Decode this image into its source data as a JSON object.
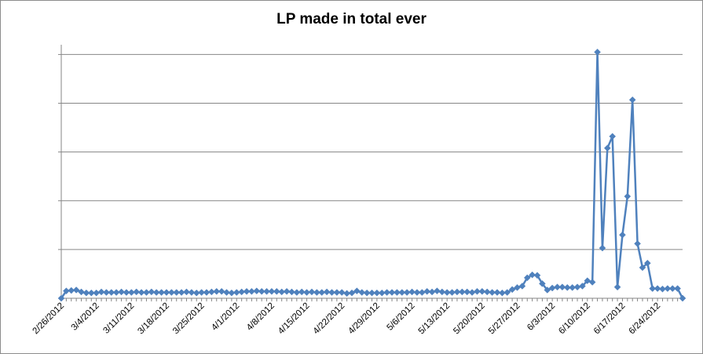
{
  "chart_data": {
    "type": "line",
    "title": "LP made in total ever",
    "xlabel": "",
    "ylabel": "",
    "x_start": "2/26/2012",
    "x_end": "6/29/2012",
    "x_tick_labels": [
      "2/26/2012",
      "3/4/2012",
      "3/11/2012",
      "3/18/2012",
      "3/25/2012",
      "4/1/2012",
      "4/8/2012",
      "4/15/2012",
      "4/22/2012",
      "4/29/2012",
      "5/6/2012",
      "5/13/2012",
      "5/20/2012",
      "5/27/2012",
      "6/3/2012",
      "6/10/2012",
      "6/17/2012",
      "6/24/2012"
    ],
    "y_tick_labels_visible": false,
    "ylim": [
      0,
      5.2
    ],
    "y_gridlines": [
      1,
      2,
      3,
      4,
      5
    ],
    "grid": true,
    "legend": "none",
    "series": [
      {
        "color": "#4f81bd",
        "marker": "diamond",
        "points": [
          [
            "2/26/2012",
            0.0
          ],
          [
            "2/27/2012",
            0.15
          ],
          [
            "2/28/2012",
            0.16
          ],
          [
            "2/29/2012",
            0.17
          ],
          [
            "3/1/2012",
            0.13
          ],
          [
            "3/2/2012",
            0.11
          ],
          [
            "3/3/2012",
            0.11
          ],
          [
            "3/4/2012",
            0.11
          ],
          [
            "3/5/2012",
            0.13
          ],
          [
            "3/6/2012",
            0.12
          ],
          [
            "3/7/2012",
            0.12
          ],
          [
            "3/8/2012",
            0.12
          ],
          [
            "3/9/2012",
            0.13
          ],
          [
            "3/10/2012",
            0.12
          ],
          [
            "3/11/2012",
            0.12
          ],
          [
            "3/12/2012",
            0.13
          ],
          [
            "3/13/2012",
            0.12
          ],
          [
            "3/14/2012",
            0.12
          ],
          [
            "3/15/2012",
            0.13
          ],
          [
            "3/16/2012",
            0.12
          ],
          [
            "3/17/2012",
            0.12
          ],
          [
            "3/18/2012",
            0.12
          ],
          [
            "3/19/2012",
            0.12
          ],
          [
            "3/20/2012",
            0.12
          ],
          [
            "3/21/2012",
            0.12
          ],
          [
            "3/22/2012",
            0.13
          ],
          [
            "3/23/2012",
            0.12
          ],
          [
            "3/24/2012",
            0.11
          ],
          [
            "3/25/2012",
            0.12
          ],
          [
            "3/26/2012",
            0.12
          ],
          [
            "3/27/2012",
            0.13
          ],
          [
            "3/28/2012",
            0.14
          ],
          [
            "3/29/2012",
            0.14
          ],
          [
            "3/30/2012",
            0.12
          ],
          [
            "3/31/2012",
            0.11
          ],
          [
            "4/1/2012",
            0.12
          ],
          [
            "4/2/2012",
            0.13
          ],
          [
            "4/3/2012",
            0.14
          ],
          [
            "4/4/2012",
            0.14
          ],
          [
            "4/5/2012",
            0.15
          ],
          [
            "4/6/2012",
            0.14
          ],
          [
            "4/7/2012",
            0.14
          ],
          [
            "4/8/2012",
            0.14
          ],
          [
            "4/9/2012",
            0.14
          ],
          [
            "4/10/2012",
            0.13
          ],
          [
            "4/11/2012",
            0.14
          ],
          [
            "4/12/2012",
            0.13
          ],
          [
            "4/13/2012",
            0.12
          ],
          [
            "4/14/2012",
            0.13
          ],
          [
            "4/15/2012",
            0.12
          ],
          [
            "4/16/2012",
            0.13
          ],
          [
            "4/17/2012",
            0.12
          ],
          [
            "4/18/2012",
            0.12
          ],
          [
            "4/19/2012",
            0.13
          ],
          [
            "4/20/2012",
            0.12
          ],
          [
            "4/21/2012",
            0.12
          ],
          [
            "4/22/2012",
            0.12
          ],
          [
            "4/23/2012",
            0.1
          ],
          [
            "4/24/2012",
            0.11
          ],
          [
            "4/25/2012",
            0.15
          ],
          [
            "4/26/2012",
            0.12
          ],
          [
            "4/27/2012",
            0.11
          ],
          [
            "4/28/2012",
            0.11
          ],
          [
            "4/29/2012",
            0.11
          ],
          [
            "4/30/2012",
            0.11
          ],
          [
            "5/1/2012",
            0.12
          ],
          [
            "5/2/2012",
            0.12
          ],
          [
            "5/3/2012",
            0.12
          ],
          [
            "5/4/2012",
            0.12
          ],
          [
            "5/5/2012",
            0.12
          ],
          [
            "5/6/2012",
            0.13
          ],
          [
            "5/7/2012",
            0.12
          ],
          [
            "5/8/2012",
            0.12
          ],
          [
            "5/9/2012",
            0.14
          ],
          [
            "5/10/2012",
            0.13
          ],
          [
            "5/11/2012",
            0.15
          ],
          [
            "5/12/2012",
            0.13
          ],
          [
            "5/13/2012",
            0.12
          ],
          [
            "5/14/2012",
            0.12
          ],
          [
            "5/15/2012",
            0.13
          ],
          [
            "5/16/2012",
            0.13
          ],
          [
            "5/17/2012",
            0.13
          ],
          [
            "5/18/2012",
            0.12
          ],
          [
            "5/19/2012",
            0.14
          ],
          [
            "5/20/2012",
            0.14
          ],
          [
            "5/21/2012",
            0.13
          ],
          [
            "5/22/2012",
            0.12
          ],
          [
            "5/23/2012",
            0.12
          ],
          [
            "5/24/2012",
            0.11
          ],
          [
            "5/25/2012",
            0.12
          ],
          [
            "5/26/2012",
            0.18
          ],
          [
            "5/27/2012",
            0.22
          ],
          [
            "5/28/2012",
            0.25
          ],
          [
            "5/29/2012",
            0.42
          ],
          [
            "5/30/2012",
            0.48
          ],
          [
            "5/31/2012",
            0.47
          ],
          [
            "6/1/2012",
            0.3
          ],
          [
            "6/2/2012",
            0.17
          ],
          [
            "6/3/2012",
            0.21
          ],
          [
            "6/4/2012",
            0.23
          ],
          [
            "6/5/2012",
            0.23
          ],
          [
            "6/6/2012",
            0.22
          ],
          [
            "6/7/2012",
            0.22
          ],
          [
            "6/8/2012",
            0.23
          ],
          [
            "6/9/2012",
            0.25
          ],
          [
            "6/10/2012",
            0.36
          ],
          [
            "6/11/2012",
            0.33
          ],
          [
            "6/12/2012",
            5.05
          ],
          [
            "6/13/2012",
            1.03
          ],
          [
            "6/14/2012",
            3.08
          ],
          [
            "6/15/2012",
            3.32
          ],
          [
            "6/16/2012",
            0.23
          ],
          [
            "6/17/2012",
            1.3
          ],
          [
            "6/18/2012",
            2.09
          ],
          [
            "6/19/2012",
            4.07
          ],
          [
            "6/20/2012",
            1.12
          ],
          [
            "6/21/2012",
            0.63
          ],
          [
            "6/22/2012",
            0.72
          ],
          [
            "6/23/2012",
            0.2
          ],
          [
            "6/24/2012",
            0.2
          ],
          [
            "6/25/2012",
            0.19
          ],
          [
            "6/26/2012",
            0.2
          ],
          [
            "6/27/2012",
            0.2
          ],
          [
            "6/28/2012",
            0.2
          ],
          [
            "6/29/2012",
            0.0
          ]
        ]
      }
    ]
  }
}
